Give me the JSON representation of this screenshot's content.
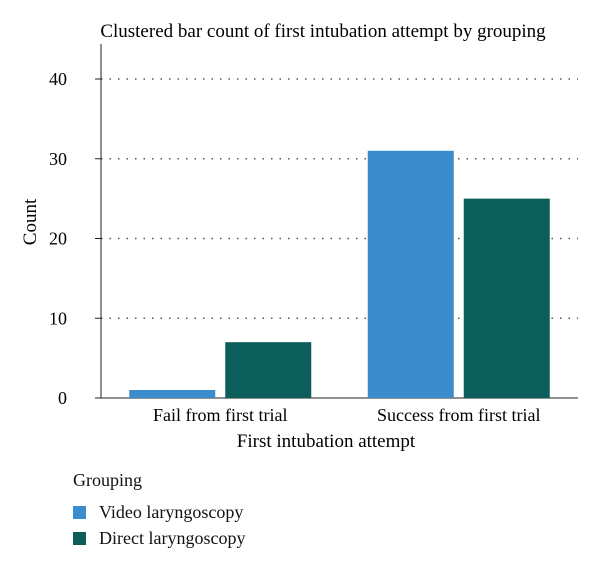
{
  "chart_data": {
    "type": "bar",
    "title": "Clustered bar count of first intubation attempt by grouping",
    "xlabel": "First intubation attempt",
    "ylabel": "Count",
    "categories": [
      "Fail from first trial",
      "Success from first trial"
    ],
    "series": [
      {
        "name": "Video laryngoscopy",
        "values": [
          1,
          31
        ],
        "color": "#3a8ccc"
      },
      {
        "name": "Direct laryngoscopy",
        "values": [
          7,
          25
        ],
        "color": "#0b5e5a"
      }
    ],
    "ylim": [
      0,
      40
    ],
    "yticks": [
      0,
      10,
      20,
      30,
      40
    ],
    "grid": "horizontal dotted",
    "legend": {
      "title": "Grouping",
      "position": "bottom-left"
    }
  }
}
